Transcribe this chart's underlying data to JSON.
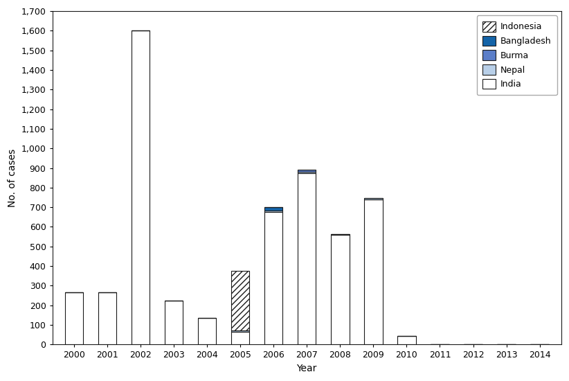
{
  "years": [
    2000,
    2001,
    2002,
    2003,
    2004,
    2005,
    2006,
    2007,
    2008,
    2009,
    2010,
    2011,
    2012,
    2013,
    2014
  ],
  "india": [
    265,
    265,
    1600,
    225,
    135,
    66,
    676,
    874,
    559,
    741,
    42,
    1,
    0,
    0,
    0
  ],
  "indonesia": [
    0,
    0,
    0,
    0,
    0,
    305,
    0,
    0,
    0,
    0,
    0,
    0,
    0,
    0,
    0
  ],
  "bangladesh": [
    0,
    0,
    0,
    0,
    0,
    0,
    18,
    0,
    0,
    0,
    0,
    0,
    0,
    0,
    0
  ],
  "burma": [
    0,
    0,
    0,
    0,
    0,
    0,
    0,
    11,
    0,
    0,
    0,
    0,
    0,
    0,
    0
  ],
  "nepal": [
    0,
    0,
    0,
    0,
    0,
    5,
    6,
    6,
    4,
    4,
    1,
    0,
    0,
    0,
    0
  ],
  "india_color": "#ffffff",
  "india_edgecolor": "#1a1a1a",
  "indonesia_color": "#ffffff",
  "indonesia_edgecolor": "#1a1a1a",
  "indonesia_hatch": "////",
  "bangladesh_color": "#1464a8",
  "bangladesh_edgecolor": "#1a1a1a",
  "burma_color": "#5b7ec9",
  "burma_edgecolor": "#1a1a1a",
  "nepal_color": "#b8cfe8",
  "nepal_edgecolor": "#1a1a1a",
  "ylabel": "No. of cases",
  "xlabel": "Year",
  "yticks": [
    0,
    100,
    200,
    300,
    400,
    500,
    600,
    700,
    800,
    900,
    1000,
    1100,
    1200,
    1300,
    1400,
    1500,
    1600,
    1700
  ],
  "ylim": [
    0,
    1700
  ],
  "text_color": "#000000",
  "legend_edge_color": "#aaaaaa",
  "spine_color": "#1a1a1a",
  "fig_bg": "#ffffff"
}
